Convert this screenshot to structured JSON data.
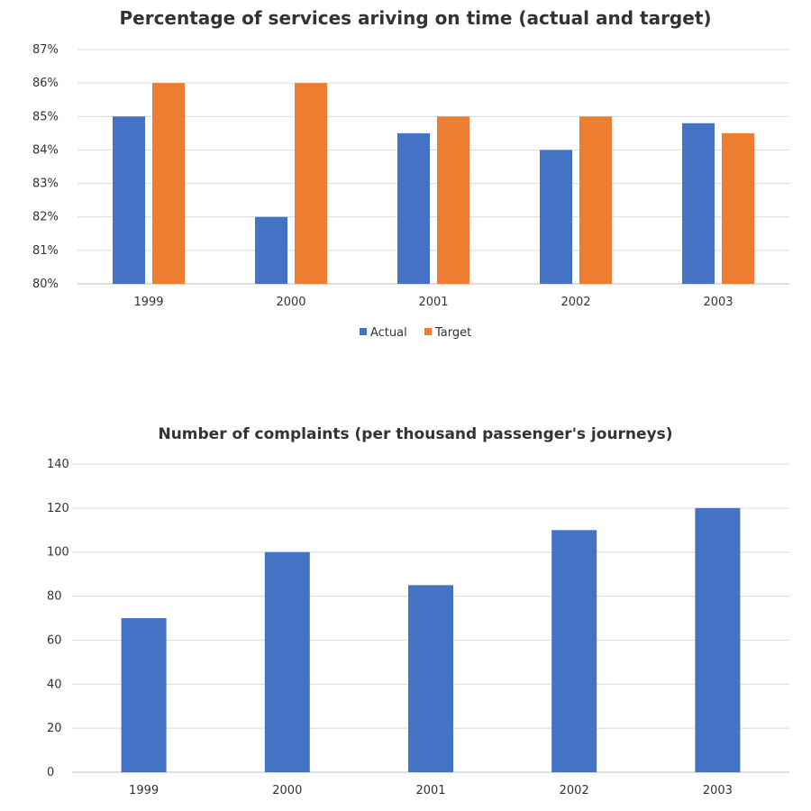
{
  "chart_data": [
    {
      "type": "bar",
      "title": "Percentage of services ariving on time (actual and target)",
      "categories": [
        "1999",
        "2000",
        "2001",
        "2002",
        "2003"
      ],
      "series": [
        {
          "name": "Actual",
          "color": "#4472c4",
          "values": [
            85,
            82,
            84.5,
            84,
            84.8
          ]
        },
        {
          "name": "Target",
          "color": "#ed7d31",
          "values": [
            86,
            86,
            85,
            85,
            84.5
          ]
        }
      ],
      "ylim": [
        80,
        87
      ],
      "yticks": [
        "80%",
        "81%",
        "82%",
        "83%",
        "84%",
        "85%",
        "86%",
        "87%"
      ],
      "grid": true,
      "legend": "bottom"
    },
    {
      "type": "bar",
      "title": "Number of complaints (per thousand passenger's journeys)",
      "categories": [
        "1999",
        "2000",
        "2001",
        "2002",
        "2003"
      ],
      "series": [
        {
          "color": "#4472c4",
          "values": [
            70,
            100,
            85,
            110,
            120
          ]
        }
      ],
      "ylim": [
        0,
        140
      ],
      "yticks": [
        "0",
        "20",
        "40",
        "60",
        "80",
        "100",
        "120",
        "140"
      ],
      "grid": true
    }
  ]
}
